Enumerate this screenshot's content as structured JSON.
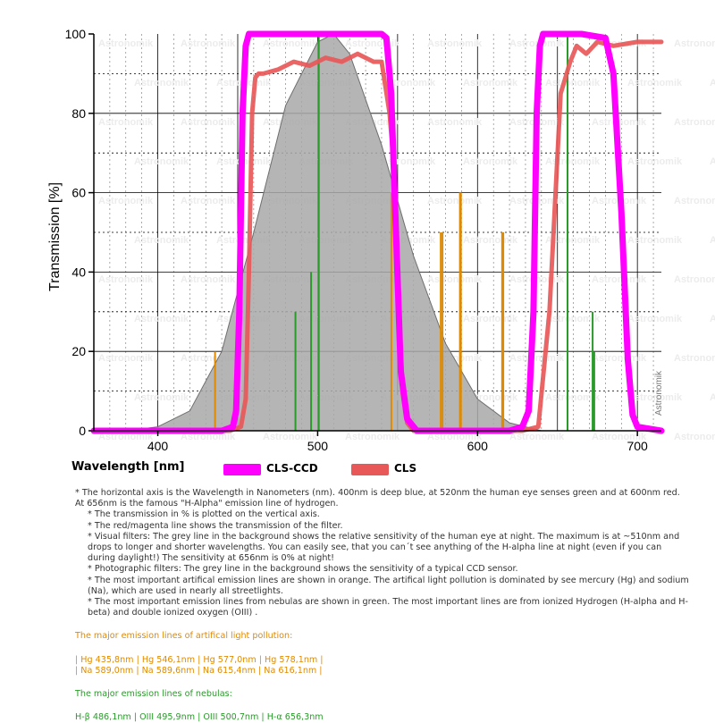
{
  "chart_data": {
    "type": "line",
    "xlabel": "Wavelength [nm]",
    "ylabel": "Transmission [%]",
    "xlim": [
      360,
      715
    ],
    "ylim": [
      0,
      100
    ],
    "x_ticks": [
      400,
      500,
      600,
      700
    ],
    "y_ticks": [
      0,
      20,
      40,
      60,
      80,
      100
    ],
    "grid": true,
    "legend_position": "bottom",
    "watermark": "Astronomik",
    "series": [
      {
        "name": "CLS-CCD",
        "color": "#ff00ff",
        "x": [
          360,
          440,
          447,
          449,
          451,
          453,
          455,
          457,
          460,
          500,
          540,
          543,
          546,
          549,
          552,
          556,
          562,
          575,
          600,
          620,
          628,
          632,
          635,
          637,
          639,
          641,
          643,
          650,
          665,
          680,
          685,
          690,
          694,
          697,
          700,
          715
        ],
        "y": [
          0,
          0,
          1,
          5,
          30,
          80,
          97,
          100,
          100,
          100,
          100,
          99,
          85,
          50,
          15,
          3,
          0,
          0,
          0,
          0,
          1,
          5,
          30,
          80,
          97,
          100,
          100,
          100,
          100,
          99,
          90,
          55,
          18,
          4,
          1,
          0
        ]
      },
      {
        "name": "CLS",
        "color": "#e85858",
        "x": [
          360,
          445,
          452,
          455,
          457,
          459,
          461,
          463,
          466,
          475,
          485,
          495,
          505,
          515,
          525,
          535,
          540,
          545,
          548,
          551,
          553,
          556,
          560,
          570,
          600,
          628,
          638,
          645,
          652,
          658,
          662,
          668,
          675,
          685,
          700,
          715
        ],
        "y": [
          0,
          0,
          1,
          8,
          40,
          80,
          89,
          90,
          90,
          91,
          93,
          92,
          94,
          93,
          95,
          93,
          93,
          80,
          65,
          30,
          10,
          2,
          0,
          0,
          0,
          0,
          1,
          30,
          85,
          93,
          97,
          95,
          98,
          97,
          98,
          98
        ]
      }
    ],
    "eye_sensitivity": {
      "name": "Human eye sensitivity at night",
      "color": "#9a9a9a",
      "x": [
        360,
        380,
        400,
        420,
        440,
        460,
        480,
        500,
        510,
        520,
        540,
        560,
        580,
        600,
        620,
        640,
        656
      ],
      "y": [
        0,
        0,
        1,
        5,
        20,
        50,
        82,
        98,
        100,
        95,
        72,
        44,
        22,
        8,
        2,
        0,
        0
      ]
    },
    "emission_lines": [
      {
        "nm": 435.8,
        "height": 20,
        "color": "#e08a00"
      },
      {
        "nm": 486.1,
        "height": 30,
        "color": "#2a9a2a"
      },
      {
        "nm": 495.9,
        "height": 40,
        "color": "#2a9a2a"
      },
      {
        "nm": 500.7,
        "height": 100,
        "color": "#2a9a2a"
      },
      {
        "nm": 546.1,
        "height": 60,
        "color": "#e08a00"
      },
      {
        "nm": 577.0,
        "height": 50,
        "color": "#e08a00"
      },
      {
        "nm": 578.1,
        "height": 50,
        "color": "#e08a00"
      },
      {
        "nm": 589.0,
        "height": 60,
        "color": "#e08a00"
      },
      {
        "nm": 589.6,
        "height": 60,
        "color": "#e08a00"
      },
      {
        "nm": 615.4,
        "height": 50,
        "color": "#e08a00"
      },
      {
        "nm": 616.1,
        "height": 50,
        "color": "#e08a00"
      },
      {
        "nm": 656.3,
        "height": 100,
        "color": "#2a9a2a"
      },
      {
        "nm": 672.0,
        "height": 30,
        "color": "#2a9a2a"
      },
      {
        "nm": 673.0,
        "height": 20,
        "color": "#2a9a2a"
      }
    ]
  },
  "legend": {
    "xlabel": "Wavelength [nm]",
    "items": [
      {
        "label": "CLS-CCD",
        "color": "#ff00ff"
      },
      {
        "label": "CLS",
        "color": "#e85858"
      }
    ]
  },
  "notes": {
    "p1": "* The horizontal axis is the Wavelength in Nanometers (nm). 400nm is deep blue, at 520nm the human eye senses green and at 600nm red. At 656nm is the famous \"H-Alpha\" emission line of hydrogen.",
    "p2": "* The transmission in % is plotted on the vertical axis.",
    "p3": "* The red/magenta line shows the transmission of the filter.",
    "p4": "* Visual filters: The grey line in the background shows the relative sensitivity of the human eye at night. The maximum is at ~510nm and drops to longer and shorter wavelengths. You can easily see, that you can´t see anything of the H-alpha line at night (even if you can during daylight!) The sensitivity at 656nm is 0% at night!",
    "p5": "* Photographic filters: The grey line in the background shows the sensitivity of a typical CCD sensor.",
    "p6": "* The most important artifical emission lines are shown in orange. The artifical light pollution is dominated by see mercury (Hg) and sodium (Na), which are used in nearly all streetlights.",
    "p7": "* The most important emission lines from nebulas are shown in green. The most important lines are from ionized Hydrogen (H-alpha and H-beta) and double ionized oxygen (OIII) .",
    "pollution_title": "The major emission lines of artifical light pollution:",
    "pollution_line1": "| Hg 435,8nm | Hg 546,1nm | Hg 577,0nm | Hg 578,1nm |",
    "pollution_line2": "| Na 589,0nm | Na 589,6nm | Na 615,4nm | Na 616,1nm |",
    "nebula_title": "The major emission lines of nebulas:",
    "nebula_line": "H-β 486,1nm | OIII 495,9nm | OIII 500,7nm | H-α 656,3nm"
  }
}
